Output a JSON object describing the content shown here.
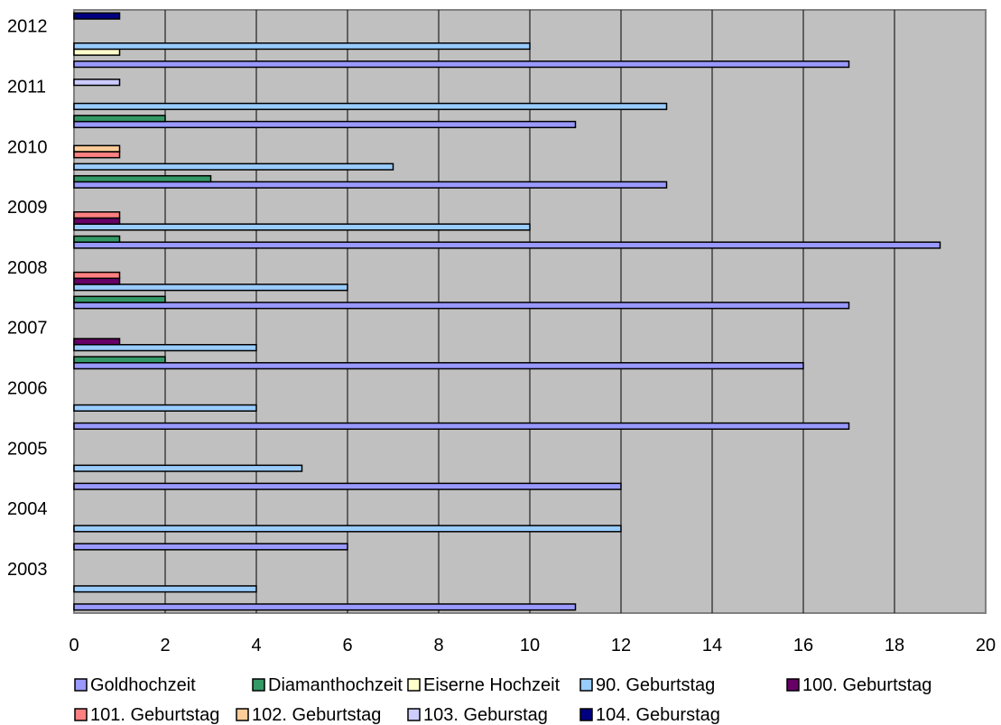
{
  "chart_data": {
    "type": "bar",
    "orientation": "horizontal",
    "categories": [
      "2003",
      "2004",
      "2005",
      "2006",
      "2007",
      "2008",
      "2009",
      "2010",
      "2011",
      "2012"
    ],
    "xlim": [
      0,
      20
    ],
    "xticks": [
      "0",
      "2",
      "4",
      "6",
      "8",
      "10",
      "12",
      "14",
      "16",
      "18",
      "20"
    ],
    "grid": true,
    "legend_position": "bottom",
    "series": [
      {
        "name": "Goldhochzeit",
        "color": "#9999ff",
        "values": [
          11,
          6,
          12,
          17,
          16,
          17,
          19,
          13,
          11,
          17
        ]
      },
      {
        "name": "Diamanthochzeit",
        "color": "#339966",
        "values": [
          0,
          0,
          0,
          0,
          2,
          2,
          1,
          3,
          2,
          0
        ]
      },
      {
        "name": "Eiserne Hochzeit",
        "color": "#ffffcc",
        "values": [
          0,
          0,
          0,
          0,
          0,
          0,
          0,
          0,
          0,
          1
        ]
      },
      {
        "name": "90. Geburtstag",
        "color": "#99ccff",
        "values": [
          4,
          12,
          5,
          4,
          4,
          6,
          10,
          7,
          13,
          10
        ]
      },
      {
        "name": "100. Geburtstag",
        "color": "#660066",
        "values": [
          0,
          0,
          0,
          0,
          1,
          1,
          1,
          0,
          0,
          0
        ]
      },
      {
        "name": "101. Geburtstag",
        "color": "#ff8080",
        "values": [
          0,
          0,
          0,
          0,
          0,
          1,
          1,
          1,
          0,
          0
        ]
      },
      {
        "name": "102. Geburtstag",
        "color": "#ffcc99",
        "values": [
          0,
          0,
          0,
          0,
          0,
          0,
          0,
          1,
          0,
          0
        ]
      },
      {
        "name": "103. Geburstag",
        "color": "#ccccff",
        "values": [
          0,
          0,
          0,
          0,
          0,
          0,
          0,
          0,
          1,
          0
        ]
      },
      {
        "name": "104. Geburstag",
        "color": "#000080",
        "values": [
          0,
          0,
          0,
          0,
          0,
          0,
          0,
          0,
          0,
          1
        ]
      }
    ]
  },
  "colors": {
    "plot_background": "#c0c0c0",
    "gridline": "#000000"
  }
}
